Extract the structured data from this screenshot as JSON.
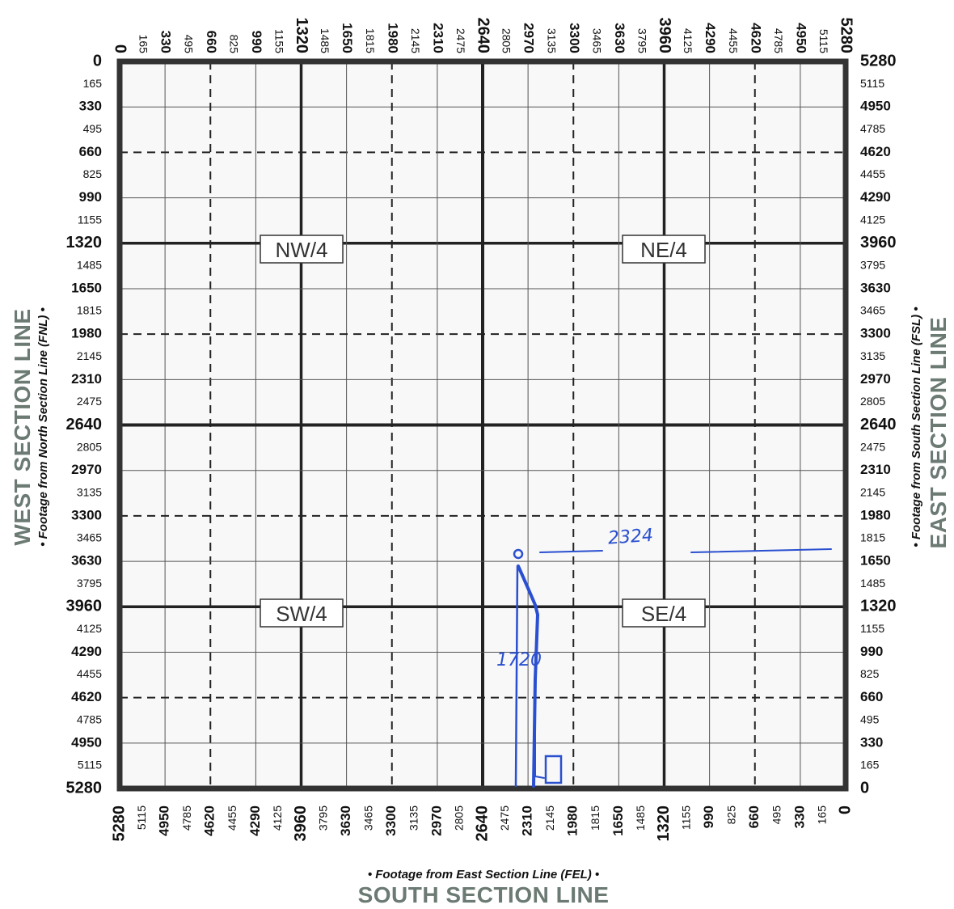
{
  "plat": {
    "side_labels": {
      "west_title": "WEST SECTION LINE",
      "west_sub": "• Footage from North Section Line (FNL) •",
      "east_title": "EAST SECTION LINE",
      "east_sub": "• Footage from South Section Line (FSL) •",
      "south_title": "SOUTH SECTION LINE",
      "south_sub": "• Footage from East Section Line (FEL) •"
    },
    "quadrants": {
      "nw": "NW/4",
      "ne": "NE/4",
      "sw": "SW/4",
      "se": "SE/4"
    },
    "ticks": {
      "top": [
        "0",
        "165",
        "330",
        "495",
        "660",
        "825",
        "990",
        "1155",
        "1320",
        "1485",
        "1650",
        "1815",
        "1980",
        "2145",
        "2310",
        "2475",
        "2640",
        "2805",
        "2970",
        "3135",
        "3300",
        "3465",
        "3630",
        "3795",
        "3960",
        "4125",
        "4290",
        "4455",
        "4620",
        "4785",
        "4950",
        "5115",
        "5280"
      ],
      "left": [
        "0",
        "165",
        "330",
        "495",
        "660",
        "825",
        "990",
        "1155",
        "1320",
        "1485",
        "1650",
        "1815",
        "1980",
        "2145",
        "2310",
        "2475",
        "2640",
        "2805",
        "2970",
        "3135",
        "3300",
        "3465",
        "3630",
        "3795",
        "3960",
        "4125",
        "4290",
        "4455",
        "4620",
        "4785",
        "4950",
        "5115",
        "5280"
      ],
      "right": [
        "5280",
        "5115",
        "4950",
        "4785",
        "4620",
        "4455",
        "4290",
        "4125",
        "3960",
        "3795",
        "3630",
        "3465",
        "3300",
        "3135",
        "2970",
        "2805",
        "2640",
        "2475",
        "2310",
        "2145",
        "1980",
        "1815",
        "1650",
        "1485",
        "1320",
        "1155",
        "990",
        "825",
        "660",
        "495",
        "330",
        "165",
        "0"
      ],
      "bottom": [
        "5280",
        "5115",
        "4950",
        "4785",
        "4620",
        "4455",
        "4290",
        "4125",
        "3960",
        "3795",
        "3630",
        "3465",
        "3300",
        "3135",
        "2970",
        "2805",
        "2640",
        "2475",
        "2310",
        "2145",
        "1980",
        "1815",
        "1650",
        "1485",
        "1320",
        "1155",
        "990",
        "825",
        "660",
        "495",
        "330",
        "165",
        "0"
      ]
    },
    "handwritten": {
      "horizontal_distance": "2324",
      "vertical_distance": "1720"
    },
    "colors": {
      "ink": "#2a4fd0",
      "frame": "#333333",
      "title": "#6b7a72"
    }
  }
}
